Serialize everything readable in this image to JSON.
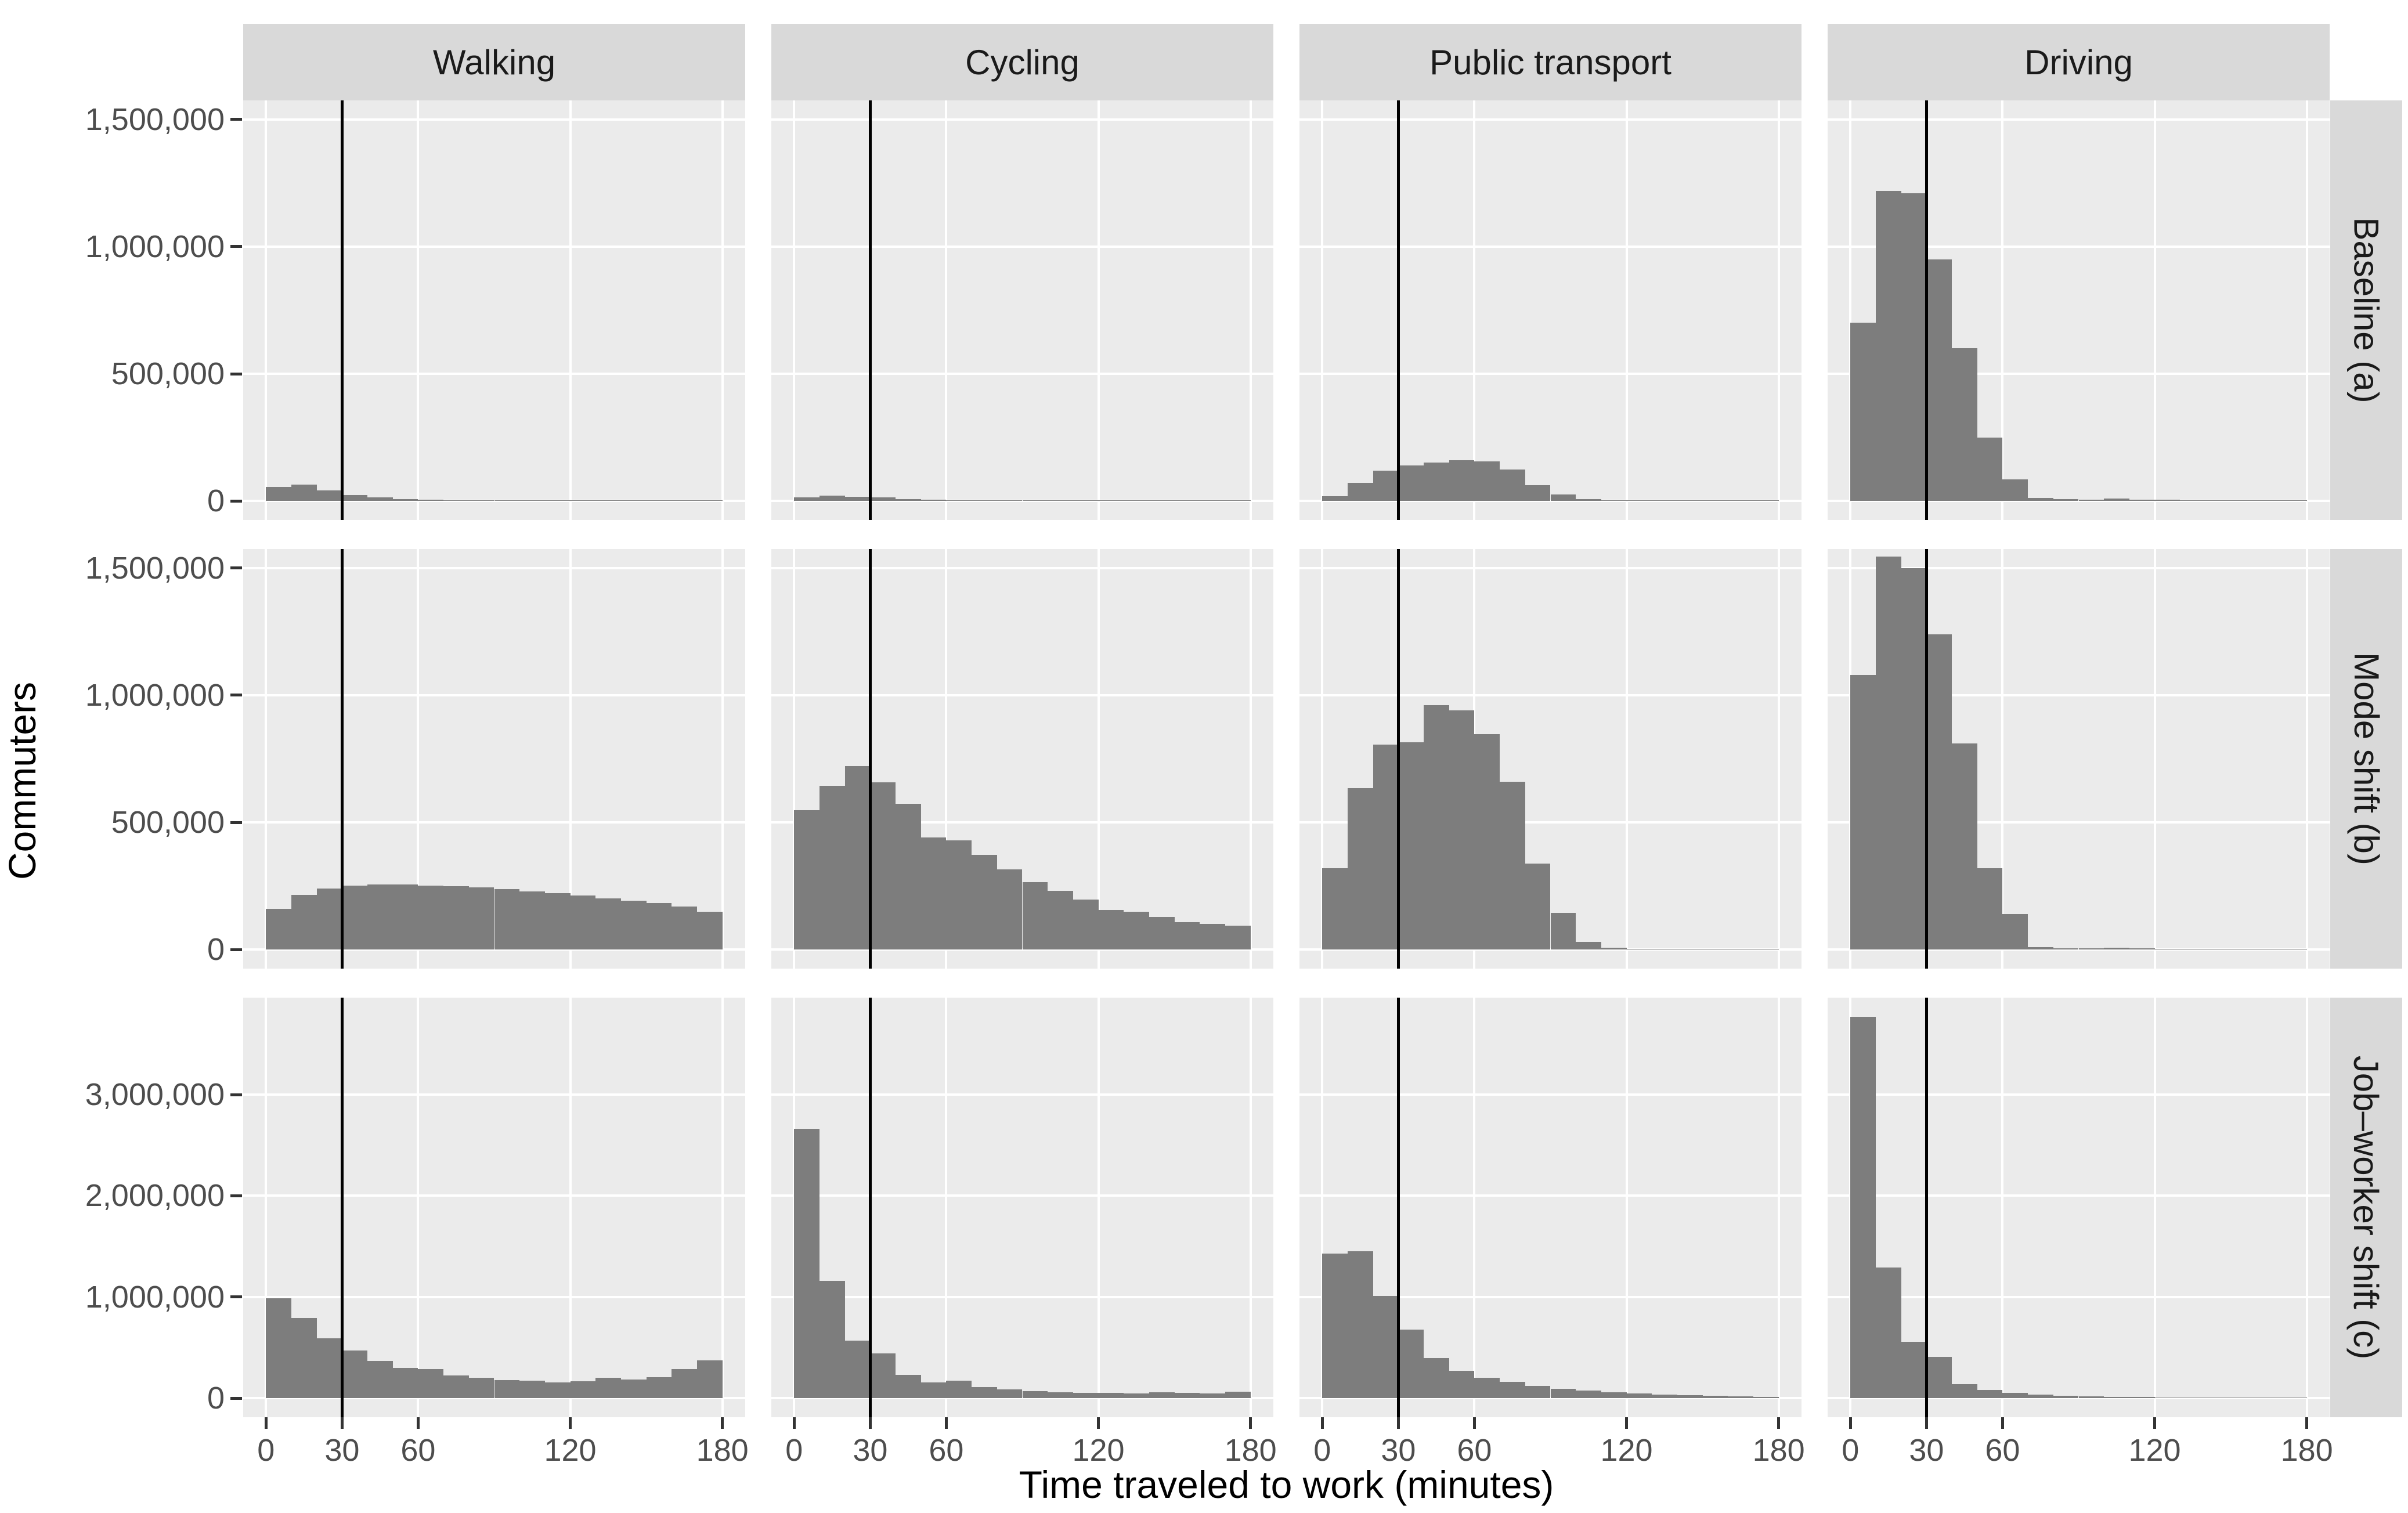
{
  "figure": {
    "x_axis_title": "Time traveled to work (minutes)",
    "y_axis_title": "Commuters",
    "col_facets": [
      "Walking",
      "Cycling",
      "Public transport",
      "Driving"
    ],
    "row_facets": [
      "Baseline (a)",
      "Mode shift (b)",
      "Job–worker shift (c)"
    ],
    "colors": {
      "bar_fill": "#7d7d7d",
      "panel_background": "#ebebeb",
      "strip_background": "#d9d9d9",
      "gridline": "#ffffff",
      "reference_line": "#000000",
      "tick_label": "#4d4d4d",
      "tick_mark": "#333333",
      "axis_title": "#000000"
    }
  },
  "chart_data": {
    "type": "bar",
    "subtype": "faceted-histogram",
    "title": "",
    "xlabel": "Time traveled to work (minutes)",
    "ylabel": "Commuters",
    "grid": "major-only-white",
    "legend_position": "none",
    "facet_layout": "3 scenario rows × 4 mode columns",
    "bin_width_minutes": 10,
    "bin_starts": [
      0,
      10,
      20,
      30,
      40,
      50,
      60,
      70,
      80,
      90,
      100,
      110,
      120,
      130,
      140,
      150,
      160,
      170
    ],
    "x_ticks": [
      0,
      30,
      60,
      120,
      180
    ],
    "x_tick_labels": [
      "0",
      "30",
      "60",
      "120",
      "180"
    ],
    "xlim": [
      -9,
      189
    ],
    "reference_line_x": 30,
    "rows": [
      {
        "facet": "Baseline (a)",
        "ylim": [
          -75000,
          1575000
        ],
        "y_ticks": [
          0,
          500000,
          1000000,
          1500000
        ],
        "y_tick_labels": [
          "0",
          "500,000",
          "1,000,000",
          "1,500,000"
        ],
        "series": [
          {
            "name": "Walking",
            "values": [
              55000,
              65000,
              42000,
              23000,
              13000,
              8000,
              5000,
              3500,
              2500,
              2000,
              1500,
              1200,
              1000,
              1000,
              900,
              800,
              800,
              700
            ]
          },
          {
            "name": "Cycling",
            "values": [
              13000,
              20000,
              16000,
              14000,
              6500,
              4500,
              3000,
              2500,
              2000,
              1500,
              1200,
              1000,
              900,
              800,
              700,
              700,
              600,
              600
            ]
          },
          {
            "name": "Public transport",
            "values": [
              18000,
              70000,
              118000,
              140000,
              150000,
              160000,
              155000,
              123000,
              62000,
              26000,
              8000,
              3000,
              1500,
              1200,
              1000,
              900,
              800,
              700
            ]
          },
          {
            "name": "Driving",
            "values": [
              700000,
              1220000,
              1210000,
              950000,
              600000,
              250000,
              85000,
              12000,
              8000,
              6000,
              9000,
              6000,
              4000,
              3000,
              2500,
              2000,
              1500,
              1200
            ]
          }
        ]
      },
      {
        "facet": "Mode shift (b)",
        "ylim": [
          -75000,
          1575000
        ],
        "y_ticks": [
          0,
          500000,
          1000000,
          1500000
        ],
        "y_tick_labels": [
          "0",
          "500,000",
          "1,000,000",
          "1,500,000"
        ],
        "series": [
          {
            "name": "Walking",
            "values": [
              160000,
              215000,
              240000,
              252000,
              256000,
              255000,
              252000,
              249000,
              244000,
              237000,
              229000,
              221000,
              212000,
              202000,
              192000,
              182000,
              170000,
              148000
            ]
          },
          {
            "name": "Cycling",
            "values": [
              548000,
              645000,
              722000,
              658000,
              572000,
              441000,
              429000,
              373000,
              315000,
              266000,
              230000,
              197000,
              156000,
              148000,
              128000,
              108000,
              101000,
              95000
            ]
          },
          {
            "name": "Public transport",
            "values": [
              319000,
              634000,
              805000,
              815000,
              961000,
              940000,
              846000,
              659000,
              337000,
              145000,
              29000,
              7000,
              2000,
              1200,
              800,
              600,
              500,
              400
            ]
          },
          {
            "name": "Driving",
            "values": [
              1080000,
              1545000,
              1500000,
              1240000,
              810000,
              320000,
              140000,
              9000,
              6000,
              5000,
              7000,
              5000,
              3500,
              2500,
              2000,
              1500,
              1200,
              1000
            ]
          }
        ]
      },
      {
        "facet": "Job–worker shift (c)",
        "ylim": [
          -188500,
          3958500
        ],
        "y_ticks": [
          0,
          1000000,
          2000000,
          3000000
        ],
        "y_tick_labels": [
          "0",
          "1,000,000",
          "2,000,000",
          "3,000,000"
        ],
        "series": [
          {
            "name": "Walking",
            "values": [
              990000,
              795000,
              590000,
              470000,
              370000,
              300000,
              285000,
              225000,
              200000,
              180000,
              170000,
              158000,
              168000,
              200000,
              185000,
              210000,
              290000,
              375000
            ]
          },
          {
            "name": "Cycling",
            "values": [
              2660000,
              1160000,
              570000,
              440000,
              230000,
              155000,
              175000,
              110000,
              85000,
              70000,
              60000,
              55000,
              52000,
              48000,
              56000,
              50000,
              47000,
              62000
            ]
          },
          {
            "name": "Public transport",
            "values": [
              1430000,
              1450000,
              1010000,
              675000,
              395000,
              270000,
              200000,
              161000,
              121000,
              93000,
              75000,
              59000,
              47000,
              37000,
              28000,
              22000,
              16000,
              12000
            ]
          },
          {
            "name": "Driving",
            "values": [
              3770000,
              1290000,
              560000,
              410000,
              140000,
              80000,
              50000,
              35000,
              25000,
              18000,
              13000,
              10000,
              8000,
              6000,
              5000,
              4000,
              3000,
              3000
            ]
          }
        ]
      }
    ]
  }
}
